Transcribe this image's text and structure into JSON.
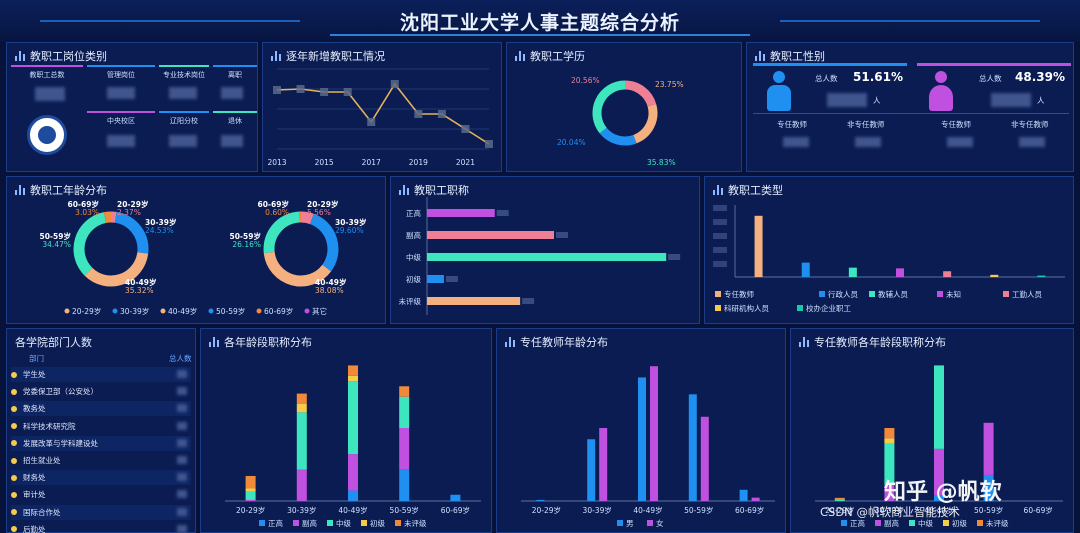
{
  "header": {
    "title": "沈阳工业大学人事主题综合分析"
  },
  "colors": {
    "blue": "#1f8ff0",
    "purple": "#c050e0",
    "green": "#3ee6c0",
    "yellow": "#f5cb4b",
    "orange": "#f08a3a",
    "pink": "#ef7f94",
    "peach": "#f5b080"
  },
  "panels": {
    "position": {
      "title": "教职工岗位类别",
      "cells": [
        "教职工总数",
        "管理岗位",
        "专业技术岗位",
        "离职",
        "中央校区",
        "辽阳分校",
        "退休"
      ]
    },
    "yearly": {
      "title": "逐年新增教职工情况"
    },
    "education": {
      "title": "教职工学历"
    },
    "gender": {
      "title": "教职工性别",
      "male_label": "总人数",
      "male_pct": "51.61%",
      "female_label": "总人数",
      "female_pct": "48.39%",
      "unit": "人",
      "sub": [
        "专任教师",
        "非专任教师",
        "专任教师",
        "非专任教师"
      ]
    },
    "age": {
      "title": "教职工年龄分布"
    },
    "rank": {
      "title": "教职工职称"
    },
    "type": {
      "title": "教职工类型"
    },
    "dept": {
      "title": "各学院部门人数",
      "col1": "部门",
      "col2": "总人数",
      "items": [
        "学生处",
        "党委保卫部（公安处）",
        "教务处",
        "科学技术研究院",
        "发展改革与学科建设处",
        "招生就业处",
        "财务处",
        "审计处",
        "国际合作处",
        "后勤处"
      ]
    },
    "age_rank": {
      "title": "各年龄段职称分布"
    },
    "teacher_age": {
      "title": "专任教师年龄分布"
    },
    "teacher_age_rank": {
      "title": "专任教师各年龄段职称分布"
    }
  },
  "chart_data": [
    {
      "type": "line",
      "title": "逐年新增教职工情况",
      "x": [
        2013,
        2014,
        2015,
        2016,
        2017,
        2018,
        2019,
        2020,
        2021,
        2022
      ],
      "x_ticks": [
        "2013",
        "2015",
        "2017",
        "2019",
        "2021"
      ],
      "values": [
        59,
        60,
        57,
        57,
        27,
        65,
        35,
        35,
        20,
        5
      ],
      "ylim": [
        0,
        80
      ]
    },
    {
      "type": "pie",
      "title": "教职工学历",
      "labels": [
        "20.56%",
        "23.75%",
        "20.04%",
        "35.83%"
      ],
      "values": [
        20.56,
        23.75,
        20.04,
        35.83
      ],
      "colors": [
        "#ef7f94",
        "#f5b080",
        "#1f8ff0",
        "#3ee6c0"
      ]
    },
    {
      "type": "pie",
      "title": "教职工年龄分布",
      "labels": [
        "20-29岁",
        "30-39岁",
        "40-49岁",
        "50-59岁",
        "60-69岁"
      ],
      "values": [
        2.37,
        24.53,
        35.32,
        34.47,
        3.03
      ],
      "pct_labels": [
        "2.37%",
        "24.53%",
        "35.32%",
        "34.47%",
        "3.03%"
      ]
    },
    {
      "type": "pie",
      "title": "教职工年龄分布",
      "labels": [
        "20-29岁",
        "30-39岁",
        "40-49岁",
        "50-59岁",
        "60-69岁"
      ],
      "values": [
        5.56,
        29.6,
        38.08,
        26.16,
        0.6
      ],
      "pct_labels": [
        "5.56%",
        "29.60%",
        "38.08%",
        "26.16%",
        "0.60%"
      ]
    },
    {
      "type": "bar",
      "title": "教职工职称",
      "categories": [
        "正高",
        "副高",
        "中级",
        "初级",
        "未评级"
      ],
      "values": [
        160,
        300,
        565,
        40,
        220
      ],
      "colors": [
        "#c050e0",
        "#ef7f94",
        "#3ee6c0",
        "#1f8ff0",
        "#f5b080"
      ],
      "xlim": [
        0,
        600
      ]
    },
    {
      "type": "bar",
      "title": "教职工类型",
      "categories": [
        "专任教师",
        "行政人员",
        "教辅人员",
        "未知",
        "工勤人员",
        "科研机构人员",
        "校办企业职工"
      ],
      "values": [
        85,
        20,
        13,
        12,
        8,
        3,
        2
      ],
      "colors": [
        "#f5b080",
        "#1f8ff0",
        "#3ee6c0",
        "#c050e0",
        "#ef7f94",
        "#f5cb4b",
        "#19c8a8"
      ],
      "ylim": [
        0,
        100
      ]
    },
    {
      "type": "bar",
      "title": "各年龄段职称分布",
      "categories": [
        "20-29岁",
        "30-39岁",
        "40-49岁",
        "50-59岁",
        "60-69岁"
      ],
      "series": [
        {
          "name": "正高",
          "values": [
            0,
            0,
            10,
            30,
            6
          ]
        },
        {
          "name": "副高",
          "values": [
            1,
            30,
            35,
            40,
            0
          ]
        },
        {
          "name": "中级",
          "values": [
            8,
            55,
            70,
            30,
            0
          ]
        },
        {
          "name": "初级",
          "values": [
            3,
            8,
            5,
            0,
            0
          ]
        },
        {
          "name": "未评级",
          "values": [
            12,
            10,
            10,
            10,
            0
          ]
        }
      ],
      "ylim": [
        0,
        140
      ]
    },
    {
      "type": "bar",
      "title": "专任教师年龄分布",
      "categories": [
        "20-29岁",
        "30-39岁",
        "40-49岁",
        "50-59岁",
        "60-69岁"
      ],
      "series": [
        {
          "name": "男",
          "values": [
            1,
            55,
            110,
            95,
            10
          ]
        },
        {
          "name": "女",
          "values": [
            0,
            65,
            120,
            75,
            3
          ]
        }
      ],
      "ylim": [
        0,
        130
      ]
    },
    {
      "type": "bar",
      "title": "专任教师各年龄段职称分布",
      "categories": [
        "20-29岁",
        "30-39岁",
        "40-49岁",
        "50-59岁",
        "60-69岁"
      ],
      "series": [
        {
          "name": "正高",
          "values": [
            0,
            0,
            5,
            25,
            0
          ]
        },
        {
          "name": "副高",
          "values": [
            0,
            15,
            45,
            50,
            0
          ]
        },
        {
          "name": "中级",
          "values": [
            1,
            40,
            80,
            0,
            0
          ]
        },
        {
          "name": "初级",
          "values": [
            0,
            5,
            0,
            0,
            0
          ]
        },
        {
          "name": "未评级",
          "values": [
            2,
            10,
            0,
            0,
            0
          ]
        }
      ],
      "ylim": [
        0,
        140
      ]
    }
  ],
  "watermark": {
    "main": "知乎 @帆软",
    "sub": "CSDN @帆软商业智能技术"
  }
}
